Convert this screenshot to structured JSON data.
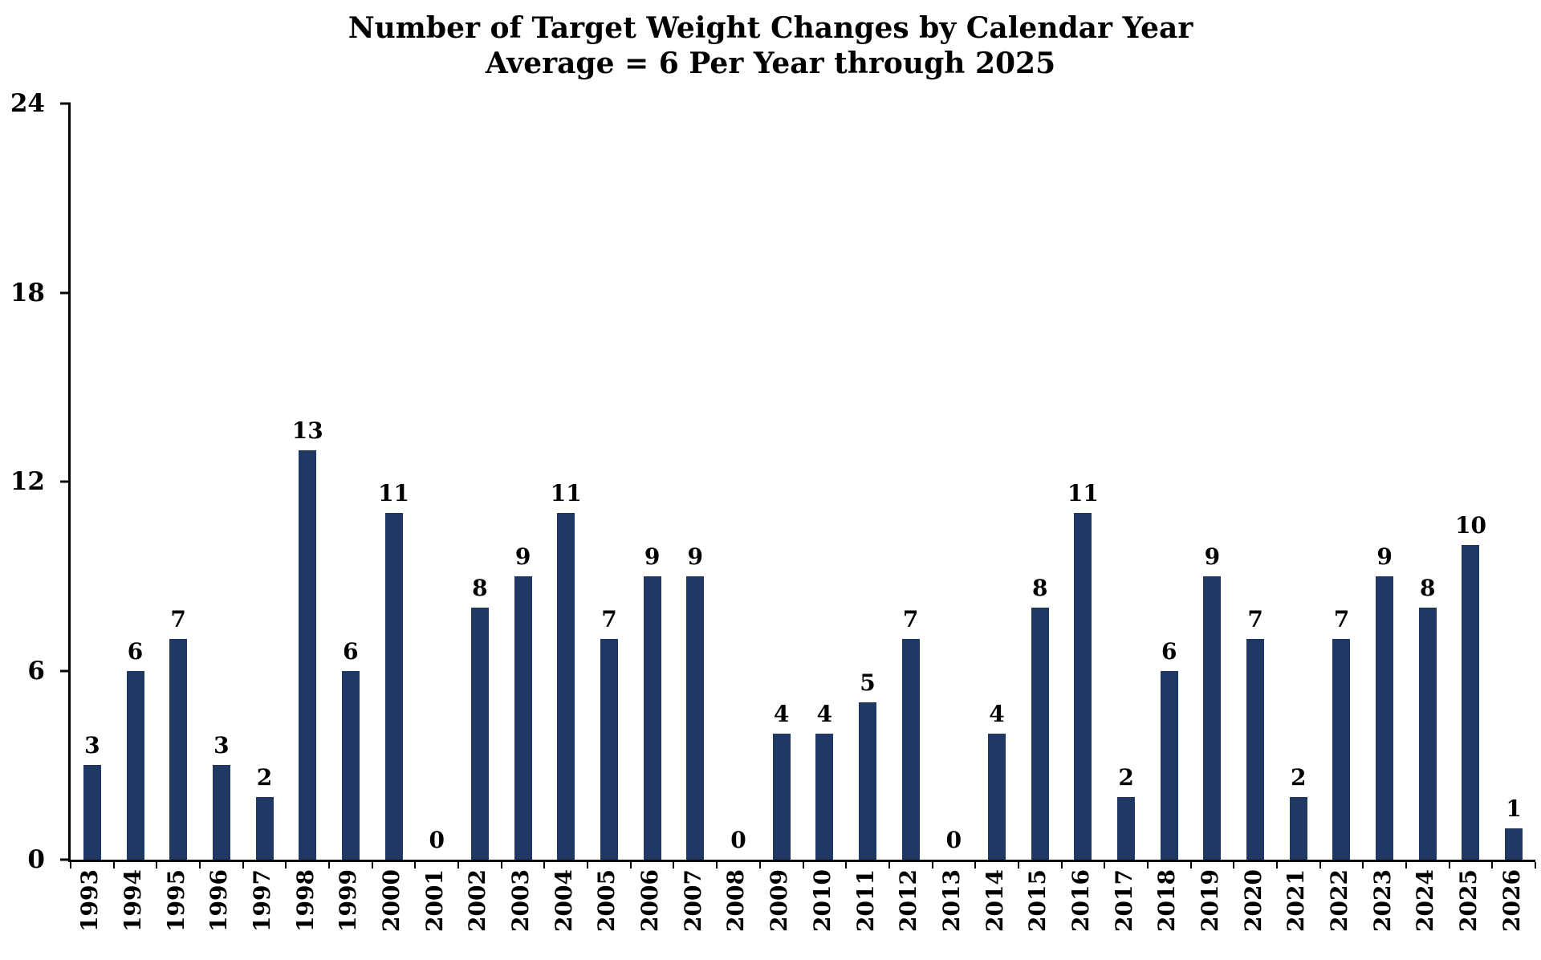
{
  "title": {
    "line1": "Number of Target Weight Changes by Calendar Year",
    "line2": "Average = 6 Per Year through 2025"
  },
  "chart_data": {
    "type": "bar",
    "title": "Number of Target Weight Changes by Calendar Year",
    "subtitle": "Average = 6 Per Year through 2025",
    "xlabel": "",
    "ylabel": "",
    "ylim": [
      0,
      24
    ],
    "yticks": [
      0,
      6,
      12,
      18,
      24
    ],
    "grid": false,
    "legend": false,
    "bar_color": "#1f3864",
    "categories": [
      "1993",
      "1994",
      "1995",
      "1996",
      "1997",
      "1998",
      "1999",
      "2000",
      "2001",
      "2002",
      "2003",
      "2004",
      "2005",
      "2006",
      "2007",
      "2008",
      "2009",
      "2010",
      "2011",
      "2012",
      "2013",
      "2014",
      "2015",
      "2016",
      "2017",
      "2018",
      "2019",
      "2020",
      "2021",
      "2022",
      "2023",
      "2024",
      "2025",
      "2026"
    ],
    "values": [
      3,
      6,
      7,
      3,
      2,
      13,
      6,
      11,
      0,
      8,
      9,
      11,
      7,
      9,
      9,
      0,
      4,
      4,
      5,
      7,
      0,
      4,
      8,
      11,
      2,
      6,
      9,
      7,
      2,
      7,
      9,
      8,
      10,
      1
    ]
  }
}
